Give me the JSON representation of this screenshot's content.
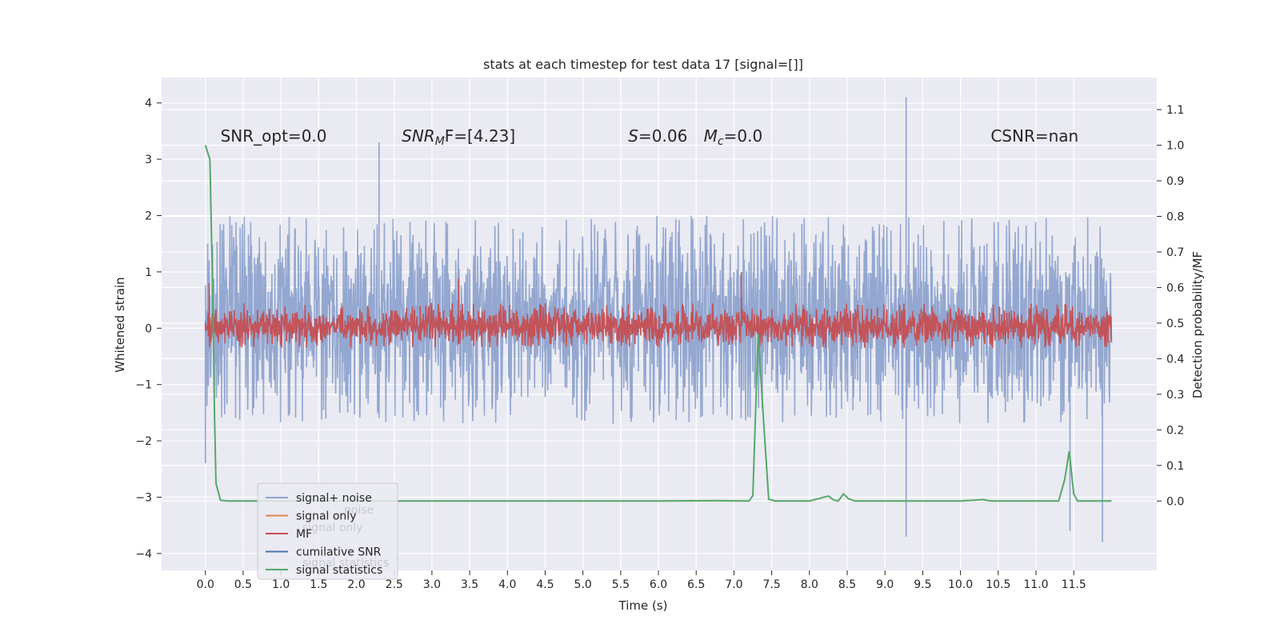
{
  "chart_data": {
    "type": "line",
    "title": "stats at each timestep for test data 17 [signal=[]]",
    "xlabel": "Time (s)",
    "ylabel_left": "Whitened strain",
    "ylabel_right": "Detection probability/MF",
    "xlim": [
      -0.58,
      12.6
    ],
    "ylim_left": [
      -4.3,
      4.45
    ],
    "ylim_right": [
      -0.195,
      1.19
    ],
    "x_ticks": [
      "0.0",
      "0.5",
      "1.0",
      "1.5",
      "2.0",
      "2.5",
      "3.0",
      "3.5",
      "4.0",
      "4.5",
      "5.0",
      "5.5",
      "6.0",
      "6.5",
      "7.0",
      "7.5",
      "8.0",
      "8.5",
      "9.0",
      "9.5",
      "10.0",
      "10.5",
      "11.0",
      "11.5"
    ],
    "y_ticks_left": [
      "-4",
      "-3",
      "-2",
      "-1",
      "0",
      "1",
      "2",
      "3",
      "4"
    ],
    "y_ticks_right": [
      "0.0",
      "0.1",
      "0.2",
      "0.3",
      "0.4",
      "0.5",
      "0.6",
      "0.7",
      "0.8",
      "0.9",
      "1.0",
      "1.1"
    ],
    "grid": true,
    "legend_placement": "lower-left",
    "noise_band": {
      "x_range": [
        0.0,
        12.0
      ],
      "typical_envelope": [
        -1.7,
        2.0
      ],
      "notable_extremes": [
        {
          "x": 9.28,
          "y": 4.1
        },
        {
          "x": 9.28,
          "y": -3.7
        },
        {
          "x": 11.88,
          "y": -3.8
        },
        {
          "x": 11.45,
          "y": -3.6
        },
        {
          "x": 2.3,
          "y": 3.3
        },
        {
          "x": 0.0,
          "y": -2.4
        }
      ]
    },
    "mf_band": {
      "x_range": [
        0.0,
        12.0
      ],
      "typical_envelope": [
        -0.35,
        0.45
      ],
      "notable_extremes": [
        {
          "x": 7.1,
          "y": 1.0
        },
        {
          "x": 3.35,
          "y": 0.88
        },
        {
          "x": 0.05,
          "y": 0.8
        }
      ]
    },
    "series": [
      {
        "name": "signal+ noise",
        "axis": "left",
        "color": "#8ea3ce",
        "style": "dense-noise"
      },
      {
        "name": "signal only",
        "axis": "left",
        "color": "#dd8452",
        "style": "hidden"
      },
      {
        "name": "MF",
        "axis": "left",
        "color": "#c44e52",
        "style": "dense-noise"
      },
      {
        "name": "cumilative SNR",
        "axis": "left",
        "color": "#4c72b0",
        "style": "hidden"
      },
      {
        "name": "signal statistics",
        "axis": "right",
        "color": "#55a868",
        "style": "line",
        "x": [
          0.0,
          0.06,
          0.1,
          0.12,
          0.14,
          0.2,
          0.3,
          1.0,
          2.0,
          3.0,
          4.0,
          5.0,
          6.0,
          6.8,
          7.2,
          7.25,
          7.32,
          7.4,
          7.46,
          7.55,
          8.0,
          8.25,
          8.32,
          8.38,
          8.45,
          8.52,
          8.6,
          9.0,
          10.0,
          10.3,
          10.4,
          11.0,
          11.3,
          11.38,
          11.44,
          11.5,
          11.55,
          12.0
        ],
        "values": [
          1.0,
          0.96,
          0.55,
          0.25,
          0.05,
          0.002,
          0.0,
          0.0,
          0.0,
          0.0,
          0.0,
          0.0,
          0.0,
          0.001,
          0.0,
          0.015,
          0.47,
          0.2,
          0.005,
          0.0,
          0.0,
          0.014,
          0.003,
          0.0,
          0.02,
          0.006,
          0.0,
          0.0,
          0.0,
          0.004,
          0.0,
          0.0,
          0.0,
          0.06,
          0.14,
          0.02,
          0.0,
          0.0
        ]
      }
    ],
    "annotations": [
      {
        "x": 0.2,
        "y_right": 1.01,
        "text": "SNR_opt=0.0"
      },
      {
        "x": 2.6,
        "y_right": 1.01,
        "base": "SNR",
        "sub": "M",
        "rest": "F=[4.23]"
      },
      {
        "x": 5.6,
        "y_right": 1.01,
        "base": "S",
        "sub": "",
        "rest": "=0.06"
      },
      {
        "x": 6.6,
        "y_right": 1.01,
        "base": "M",
        "sub": "c",
        "rest": "=0.0"
      },
      {
        "x": 10.4,
        "y_right": 1.01,
        "text": "CSNR=nan"
      }
    ],
    "legend": {
      "entries": [
        "signal+ noise",
        "signal only",
        "MF",
        "cumilative SNR",
        "signal statistics"
      ],
      "ghost_entries": [
        "noise",
        "signal only",
        "signal statistics"
      ]
    }
  }
}
